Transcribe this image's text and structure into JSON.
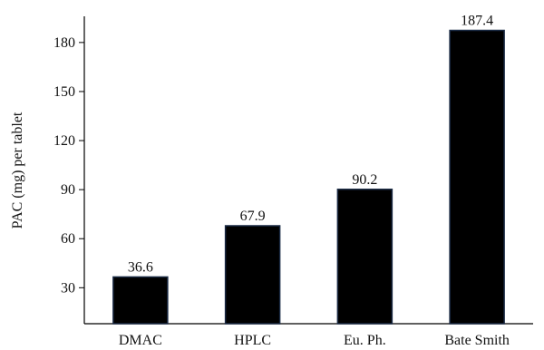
{
  "chart_data": {
    "type": "bar",
    "title": "",
    "xlabel": "",
    "ylabel": "PAC (mg) per tablet",
    "categories": [
      "DMAC",
      "HPLC",
      "Eu. Ph.",
      "Bate Smith"
    ],
    "values": [
      36.6,
      67.9,
      90.2,
      187.4
    ],
    "data_labels": [
      "36.6",
      "67.9",
      "90.2",
      "187.4"
    ],
    "ylim": [
      8,
      196
    ],
    "yticks": [
      30,
      60,
      90,
      120,
      150,
      180
    ],
    "ytick_labels": [
      "30",
      "60",
      "90",
      "120",
      "150",
      "180"
    ],
    "bar_color": "#000000",
    "bar_edge_color": "#1a2a44",
    "grid": false,
    "legend": "none"
  }
}
